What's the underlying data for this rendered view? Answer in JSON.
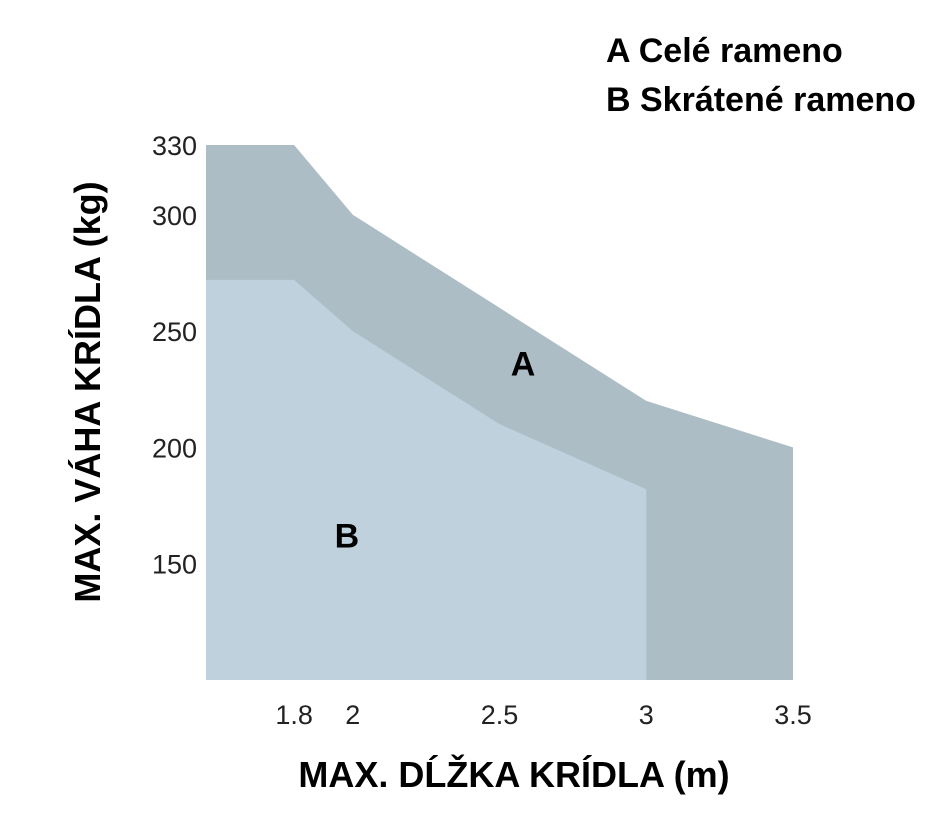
{
  "legend": {
    "line_a": "A Celé rameno",
    "line_b": "B Skrátené rameno"
  },
  "colors": {
    "area_a": "#adbdc6",
    "area_b": "#bfd1dd",
    "text": "#000000",
    "tick": "#222222"
  },
  "chart_data": {
    "type": "area",
    "xlabel": "MAX. DĹŽKA KRÍDLA (m)",
    "ylabel": "MAX. VÁHA KRÍDLA (kg)",
    "xlim": [
      1.5,
      3.5
    ],
    "ylim": [
      100,
      330
    ],
    "x_ticks": [
      1.8,
      2,
      2.5,
      3,
      3.5
    ],
    "x_tick_labels": [
      "1.8",
      "2",
      "2.5",
      "3",
      "3.5"
    ],
    "y_ticks": [
      150,
      200,
      250,
      300,
      330
    ],
    "y_tick_labels": [
      "150",
      "200",
      "250",
      "300",
      "330"
    ],
    "series": [
      {
        "name": "A",
        "x": [
          1.5,
          1.8,
          2.0,
          2.5,
          3.0,
          3.5
        ],
        "y": [
          330,
          330,
          300,
          260,
          220,
          200
        ]
      },
      {
        "name": "B",
        "x": [
          1.5,
          1.8,
          2.0,
          2.5,
          3.0
        ],
        "y": [
          272,
          272,
          250,
          210,
          182
        ]
      }
    ]
  }
}
